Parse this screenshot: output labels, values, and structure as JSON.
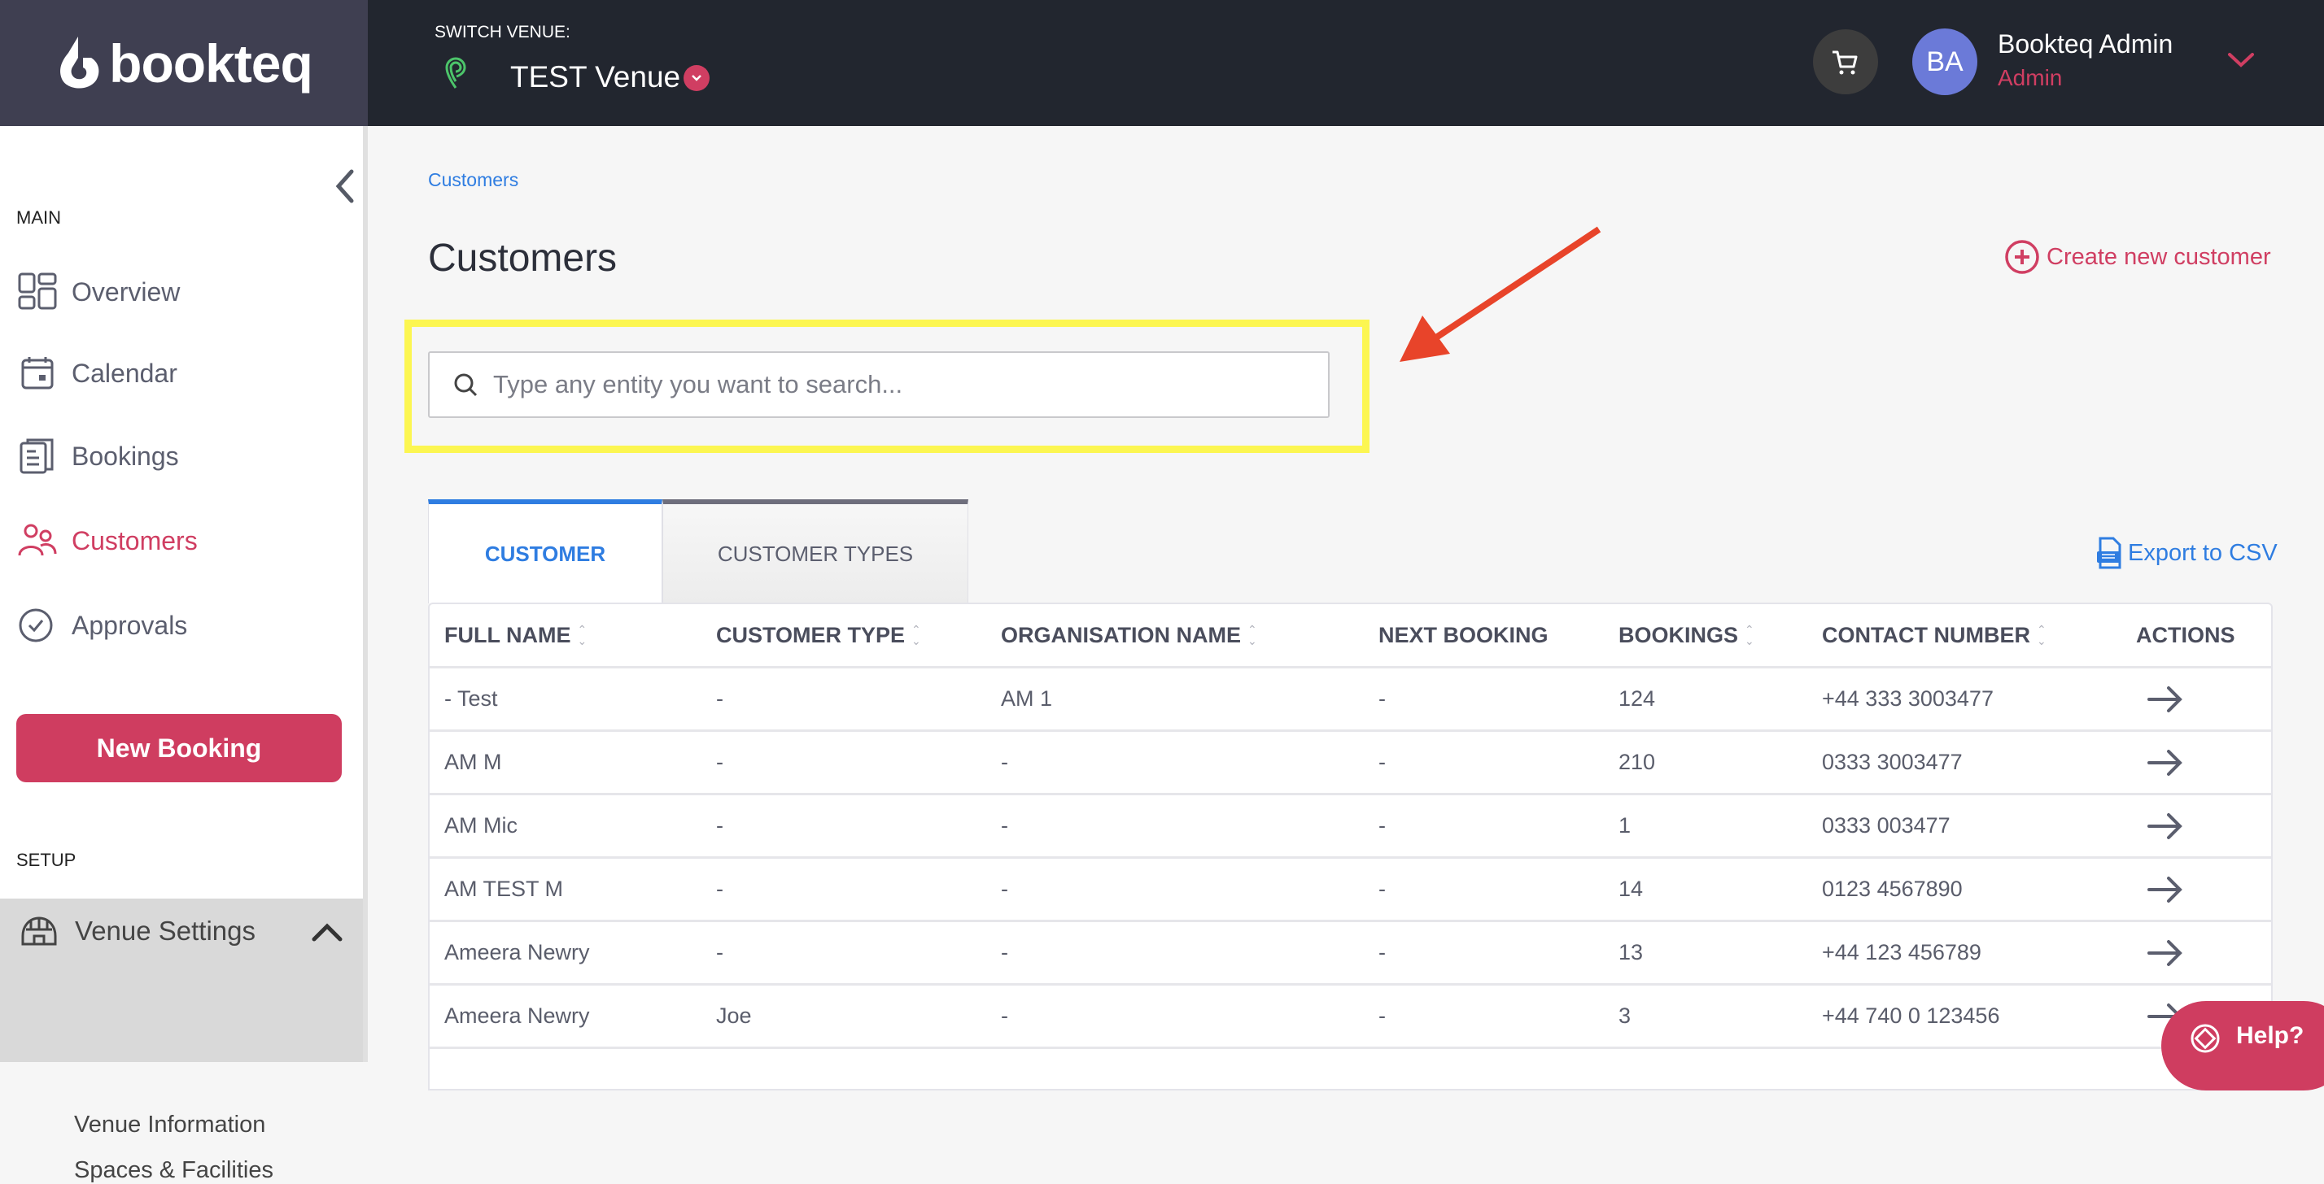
{
  "header": {
    "logo": "bookteq",
    "switch_venue_label": "SWITCH VENUE:",
    "venue_name": "TEST Venue",
    "user_initials": "BA",
    "user_name": "Bookteq Admin",
    "user_role": "Admin"
  },
  "sidebar": {
    "main_label": "MAIN",
    "items": [
      {
        "label": "Overview",
        "icon": "grid-icon"
      },
      {
        "label": "Calendar",
        "icon": "calendar-icon"
      },
      {
        "label": "Bookings",
        "icon": "bookings-icon"
      },
      {
        "label": "Customers",
        "icon": "users-icon",
        "active": true
      },
      {
        "label": "Approvals",
        "icon": "check-circle-icon"
      }
    ],
    "new_booking": "New Booking",
    "setup_label": "SETUP",
    "venue_settings": {
      "label": "Venue Settings",
      "expanded": true,
      "children": [
        "Venue Information",
        "Spaces & Facilities"
      ]
    }
  },
  "main": {
    "breadcrumb": "Customers",
    "title": "Customers",
    "create_button": "Create new customer",
    "search_placeholder": "Type any entity you want to search...",
    "search_value": "",
    "tabs": [
      {
        "label": "CUSTOMER",
        "active": true
      },
      {
        "label": "CUSTOMER TYPES",
        "active": false
      }
    ],
    "export_label": "Export to CSV",
    "table": {
      "columns": [
        {
          "label": "FULL NAME",
          "sortable": true
        },
        {
          "label": "CUSTOMER TYPE",
          "sortable": true
        },
        {
          "label": "ORGANISATION NAME",
          "sortable": true
        },
        {
          "label": "NEXT BOOKING",
          "sortable": false
        },
        {
          "label": "BOOKINGS",
          "sortable": true
        },
        {
          "label": "CONTACT NUMBER",
          "sortable": true
        },
        {
          "label": "ACTIONS",
          "sortable": false
        }
      ],
      "rows": [
        [
          "- Test",
          "-",
          "AM 1",
          "-",
          "124",
          "+44 333 3003477"
        ],
        [
          "AM M",
          "-",
          "-",
          "-",
          "210",
          "0333 3003477"
        ],
        [
          "AM Mic",
          "-",
          "-",
          "-",
          "1",
          "0333 003477"
        ],
        [
          "AM TEST M",
          "-",
          "-",
          "-",
          "14",
          "0123 4567890"
        ],
        [
          "Ameera Newry",
          "-",
          "-",
          "-",
          "13",
          "+44 123 456789"
        ],
        [
          "Ameera Newry",
          "Joe",
          "-",
          "-",
          "3",
          "+44 740 0 123456"
        ]
      ]
    }
  },
  "help_button": "Help?",
  "colors": {
    "accent": "#cf3d60",
    "link": "#2f7de1",
    "header_bg": "#22262f",
    "highlight": "#fcf651",
    "annotation_arrow": "#e8442a"
  }
}
